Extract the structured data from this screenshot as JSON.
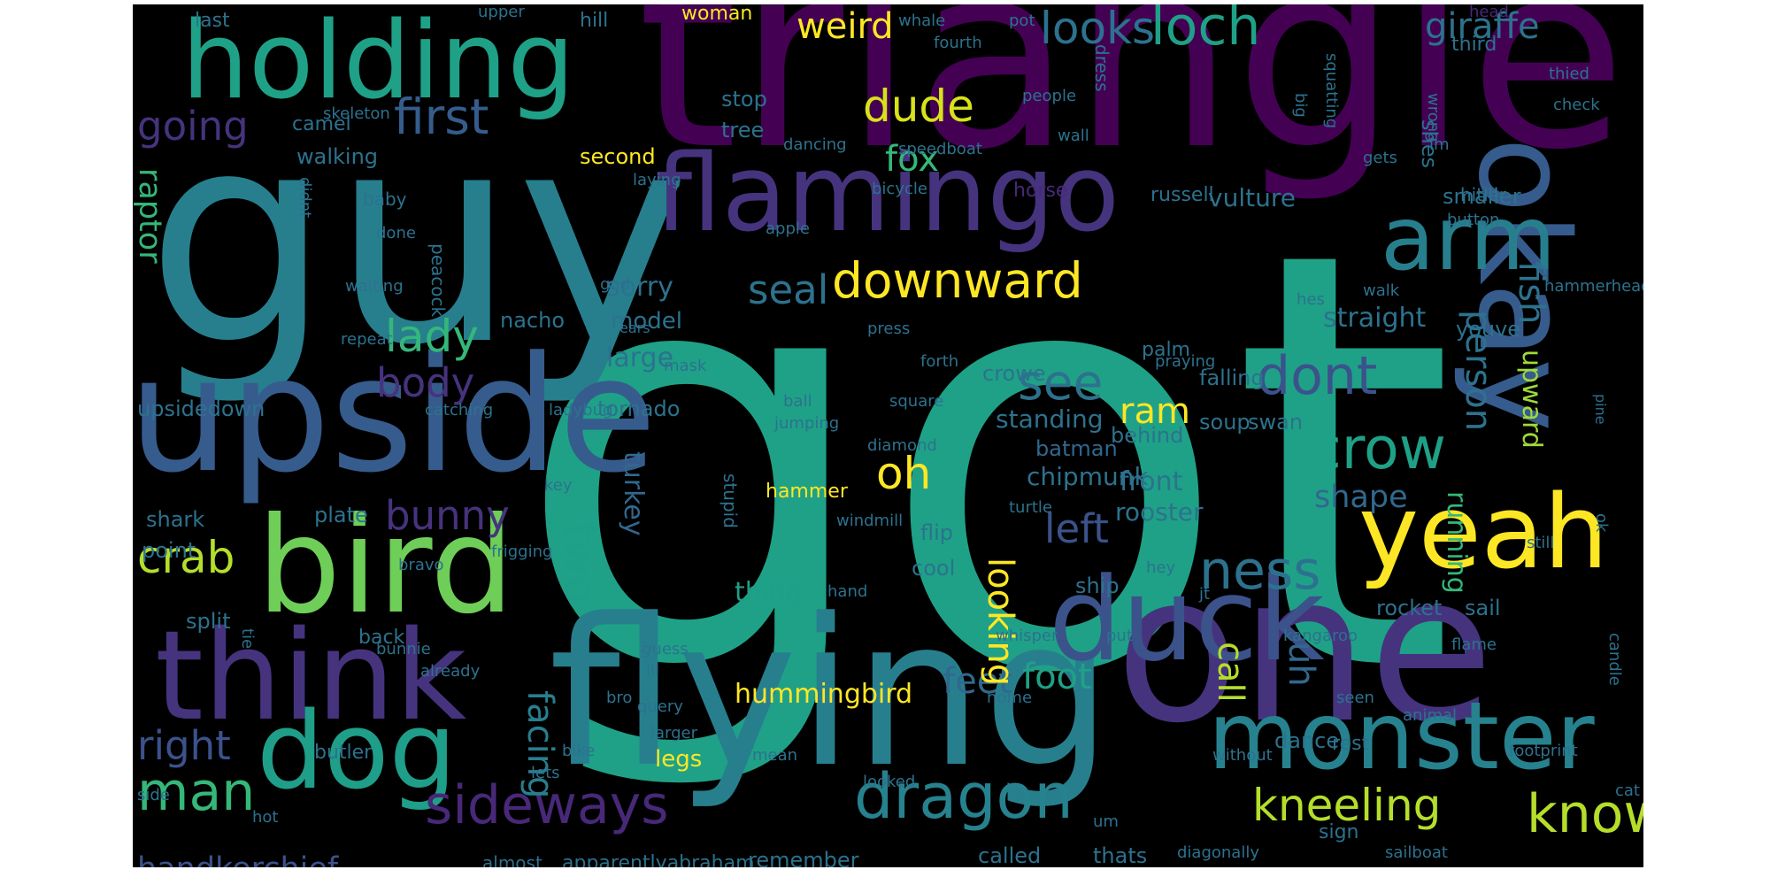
{
  "background": "#000000",
  "palette": [
    "#440154",
    "#46337e",
    "#365c8d",
    "#277f8e",
    "#1fa187",
    "#4ac16d",
    "#a0da39",
    "#fde725"
  ],
  "words": [
    {
      "text": "got",
      "color": "#1fa187"
    },
    {
      "text": "guy",
      "color": "#277f8e"
    },
    {
      "text": "triangle",
      "color": "#440154"
    },
    {
      "text": "flying",
      "color": "#277f8e"
    },
    {
      "text": "one",
      "color": "#46337e"
    },
    {
      "text": "upside",
      "color": "#365c8d"
    },
    {
      "text": "holding",
      "color": "#1fa187"
    },
    {
      "text": "flamingo",
      "color": "#46337e"
    },
    {
      "text": "bird",
      "color": "#6ece58"
    },
    {
      "text": "think",
      "color": "#46337e"
    },
    {
      "text": "okay",
      "color": "#365c8d"
    },
    {
      "text": "yeah",
      "color": "#fde725"
    },
    {
      "text": "duck",
      "color": "#3b528b"
    },
    {
      "text": "dog",
      "color": "#1f9e89"
    },
    {
      "text": "monster",
      "color": "#26828e"
    },
    {
      "text": "arm",
      "color": "#277f8e"
    },
    {
      "text": "dragon",
      "color": "#26828e"
    },
    {
      "text": "sideways",
      "color": "#482878"
    },
    {
      "text": "man",
      "color": "#35b779"
    },
    {
      "text": "ness",
      "color": "#2c728e"
    },
    {
      "text": "crow",
      "color": "#1fa187"
    },
    {
      "text": "downward",
      "color": "#fde725"
    },
    {
      "text": "dont",
      "color": "#3b528b"
    },
    {
      "text": "know",
      "color": "#b5de2b"
    },
    {
      "text": "kneeling",
      "color": "#b5de2b"
    },
    {
      "text": "looks",
      "color": "#2c728e"
    },
    {
      "text": "loch",
      "color": "#1fa187"
    },
    {
      "text": "first",
      "color": "#365c8d"
    },
    {
      "text": "going",
      "color": "#46337e"
    },
    {
      "text": "weird",
      "color": "#fde725"
    },
    {
      "text": "giraffe",
      "color": "#2c728e"
    },
    {
      "text": "dude",
      "color": "#d8e219"
    },
    {
      "text": "fox",
      "color": "#35b779"
    },
    {
      "text": "lady",
      "color": "#35b779"
    },
    {
      "text": "body",
      "color": "#46337e"
    },
    {
      "text": "crab",
      "color": "#b5de2b"
    },
    {
      "text": "right",
      "color": "#3b528b"
    },
    {
      "text": "seal",
      "color": "#2c728e"
    },
    {
      "text": "see",
      "color": "#2c728e"
    },
    {
      "text": "ram",
      "color": "#fde725"
    },
    {
      "text": "oh",
      "color": "#fde725"
    },
    {
      "text": "two",
      "color": "#1f9e89"
    },
    {
      "text": "bunny",
      "color": "#46337e"
    },
    {
      "text": "left",
      "color": "#3b528b"
    },
    {
      "text": "shape",
      "color": "#31688e"
    },
    {
      "text": "feet",
      "color": "#31688e"
    },
    {
      "text": "foot",
      "color": "#1fa187"
    },
    {
      "text": "facing",
      "color": "#277f8e"
    },
    {
      "text": "looking",
      "color": "#fde725"
    },
    {
      "text": "call",
      "color": "#b5de2b"
    },
    {
      "text": "uh",
      "color": "#31688e"
    },
    {
      "text": "person",
      "color": "#2c728e"
    },
    {
      "text": "fish",
      "color": "#2c728e"
    },
    {
      "text": "upward",
      "color": "#a0da39"
    },
    {
      "text": "running",
      "color": "#35b779"
    },
    {
      "text": "raptor",
      "color": "#35b779"
    },
    {
      "text": "turkey",
      "color": "#31688e"
    },
    {
      "text": "handkerchief",
      "color": "#3b528b"
    },
    {
      "text": "hummingbird",
      "color": "#fde725"
    },
    {
      "text": "sorry",
      "color": "#2c728e"
    },
    {
      "text": "vulture",
      "color": "#2c728e"
    },
    {
      "text": "straight",
      "color": "#2c728e"
    },
    {
      "text": "front",
      "color": "#2c728e"
    },
    {
      "text": "rooster",
      "color": "#2c728e"
    },
    {
      "text": "chipmunk",
      "color": "#2c728e"
    },
    {
      "text": "batman",
      "color": "#31688e"
    },
    {
      "text": "standing",
      "color": "#2c728e"
    },
    {
      "text": "thing",
      "color": "#1f9e89"
    },
    {
      "text": "large",
      "color": "#2c728e"
    },
    {
      "text": "model",
      "color": "#2c728e"
    },
    {
      "text": "walking",
      "color": "#2c728e"
    },
    {
      "text": "camel",
      "color": "#2c728e"
    },
    {
      "text": "stop",
      "color": "#2c728e"
    },
    {
      "text": "tree",
      "color": "#2c728e"
    },
    {
      "text": "second",
      "color": "#fde725"
    },
    {
      "text": "smaller",
      "color": "#2c728e"
    },
    {
      "text": "russell",
      "color": "#2c728e"
    },
    {
      "text": "horse",
      "color": "#482878"
    },
    {
      "text": "nacho",
      "color": "#2c728e"
    },
    {
      "text": "palm",
      "color": "#2c728e"
    },
    {
      "text": "crowe",
      "color": "#2c728e"
    },
    {
      "text": "tornado",
      "color": "#2c728e"
    },
    {
      "text": "upsidedown",
      "color": "#2c728e"
    },
    {
      "text": "shark",
      "color": "#2c728e"
    },
    {
      "text": "plate",
      "color": "#2c728e"
    },
    {
      "text": "point",
      "color": "#2c728e"
    },
    {
      "text": "split",
      "color": "#2c728e"
    },
    {
      "text": "back",
      "color": "#2c728e"
    },
    {
      "text": "butler",
      "color": "#2c728e"
    },
    {
      "text": "legs",
      "color": "#fde725"
    },
    {
      "text": "hammer",
      "color": "#fde725"
    },
    {
      "text": "flip",
      "color": "#2c728e"
    },
    {
      "text": "cool",
      "color": "#2c728e"
    },
    {
      "text": "ship",
      "color": "#2c728e"
    },
    {
      "text": "rocket",
      "color": "#2c728e"
    },
    {
      "text": "sail",
      "color": "#2c728e"
    },
    {
      "text": "youve",
      "color": "#2c728e"
    },
    {
      "text": "falling",
      "color": "#2c728e"
    },
    {
      "text": "behind",
      "color": "#2c728e"
    },
    {
      "text": "soup",
      "color": "#2c728e"
    },
    {
      "text": "swan",
      "color": "#2c728e"
    },
    {
      "text": "dance",
      "color": "#2c728e"
    },
    {
      "text": "rest",
      "color": "#2c728e"
    },
    {
      "text": "called",
      "color": "#2c728e"
    },
    {
      "text": "thats",
      "color": "#2c728e"
    },
    {
      "text": "remember",
      "color": "#2c728e"
    },
    {
      "text": "apparentlyabraham",
      "color": "#2c728e"
    },
    {
      "text": "almost",
      "color": "#2c728e"
    },
    {
      "text": "sign",
      "color": "#2c728e"
    },
    {
      "text": "shes",
      "color": "#2c728e"
    },
    {
      "text": "third",
      "color": "#2c728e"
    },
    {
      "text": "last",
      "color": "#2c728e"
    },
    {
      "text": "hill",
      "color": "#2c728e"
    },
    {
      "text": "woman",
      "color": "#fde725"
    },
    {
      "text": "upper",
      "color": "#2c728e"
    },
    {
      "text": "whale",
      "color": "#2c728e"
    },
    {
      "text": "pot",
      "color": "#2c728e"
    },
    {
      "text": "fourth",
      "color": "#2c728e"
    },
    {
      "text": "head",
      "color": "#482878"
    },
    {
      "text": "thied",
      "color": "#2c728e"
    },
    {
      "text": "check",
      "color": "#2c728e"
    },
    {
      "text": "getting",
      "color": "#2c728e"
    },
    {
      "text": "skeleton",
      "color": "#2c728e"
    },
    {
      "text": "dancing",
      "color": "#2c728e"
    },
    {
      "text": "speedboat",
      "color": "#2c728e"
    },
    {
      "text": "wall",
      "color": "#2c728e"
    },
    {
      "text": "dress",
      "color": "#2c728e"
    },
    {
      "text": "people",
      "color": "#2c728e"
    },
    {
      "text": "big",
      "color": "#2c728e"
    },
    {
      "text": "squatting",
      "color": "#2c728e"
    },
    {
      "text": "wrong",
      "color": "#2c728e"
    },
    {
      "text": "im",
      "color": "#2c728e"
    },
    {
      "text": "gets",
      "color": "#2c728e"
    },
    {
      "text": "laying",
      "color": "#2c728e"
    },
    {
      "text": "didnt",
      "color": "#2c728e"
    },
    {
      "text": "bicycle",
      "color": "#2c728e"
    },
    {
      "text": "baby",
      "color": "#2c728e"
    },
    {
      "text": "done",
      "color": "#2c728e"
    },
    {
      "text": "apple",
      "color": "#2c728e"
    },
    {
      "text": "hitler",
      "color": "#2c728e"
    },
    {
      "text": "button",
      "color": "#2c728e"
    },
    {
      "text": "walk",
      "color": "#2c728e"
    },
    {
      "text": "peacock",
      "color": "#2c728e"
    },
    {
      "text": "waiting",
      "color": "#2c728e"
    },
    {
      "text": "god",
      "color": "#2c728e"
    },
    {
      "text": "hammerhead",
      "color": "#2c728e"
    },
    {
      "text": "hes",
      "color": "#2c728e"
    },
    {
      "text": "ears",
      "color": "#2c728e"
    },
    {
      "text": "press",
      "color": "#2c728e"
    },
    {
      "text": "repeat",
      "color": "#2c728e"
    },
    {
      "text": "mask",
      "color": "#2c728e"
    },
    {
      "text": "forth",
      "color": "#2c728e"
    },
    {
      "text": "praying",
      "color": "#2c728e"
    },
    {
      "text": "catching",
      "color": "#2c728e"
    },
    {
      "text": "ladybug",
      "color": "#2c728e"
    },
    {
      "text": "ball",
      "color": "#2c728e"
    },
    {
      "text": "jumping",
      "color": "#2c728e"
    },
    {
      "text": "square",
      "color": "#2c728e"
    },
    {
      "text": "diamond",
      "color": "#2c728e"
    },
    {
      "text": "pine",
      "color": "#2c728e"
    },
    {
      "text": "key",
      "color": "#2c728e"
    },
    {
      "text": "stupid",
      "color": "#2c728e"
    },
    {
      "text": "windmill",
      "color": "#2c728e"
    },
    {
      "text": "turtle",
      "color": "#2c728e"
    },
    {
      "text": "ok",
      "color": "#2c728e"
    },
    {
      "text": "frigging",
      "color": "#2c728e"
    },
    {
      "text": "bravo",
      "color": "#2c728e"
    },
    {
      "text": "still",
      "color": "#2c728e"
    },
    {
      "text": "hey",
      "color": "#2c728e"
    },
    {
      "text": "jt",
      "color": "#2c728e"
    },
    {
      "text": "hand",
      "color": "#2c728e"
    },
    {
      "text": "tie",
      "color": "#2c728e"
    },
    {
      "text": "bunnie",
      "color": "#2c728e"
    },
    {
      "text": "already",
      "color": "#2c728e"
    },
    {
      "text": "guess",
      "color": "#2c728e"
    },
    {
      "text": "whisper",
      "color": "#2c728e"
    },
    {
      "text": "put",
      "color": "#2c728e"
    },
    {
      "text": "kangaroo",
      "color": "#2c728e"
    },
    {
      "text": "flame",
      "color": "#2c728e"
    },
    {
      "text": "candle",
      "color": "#2c728e"
    },
    {
      "text": "ill",
      "color": "#2c728e"
    },
    {
      "text": "bro",
      "color": "#2c728e"
    },
    {
      "text": "home",
      "color": "#2c728e"
    },
    {
      "text": "seen",
      "color": "#2c728e"
    },
    {
      "text": "animal",
      "color": "#2c728e"
    },
    {
      "text": "query",
      "color": "#2c728e"
    },
    {
      "text": "larger",
      "color": "#2c728e"
    },
    {
      "text": "bike",
      "color": "#2c728e"
    },
    {
      "text": "lets",
      "color": "#2c728e"
    },
    {
      "text": "mean",
      "color": "#2c728e"
    },
    {
      "text": "without",
      "color": "#2c728e"
    },
    {
      "text": "footprint",
      "color": "#2c728e"
    },
    {
      "text": "side",
      "color": "#2c728e"
    },
    {
      "text": "looked",
      "color": "#2c728e"
    },
    {
      "text": "cat",
      "color": "#2c728e"
    },
    {
      "text": "hot",
      "color": "#2c728e"
    },
    {
      "text": "um",
      "color": "#2c728e"
    },
    {
      "text": "diagonally",
      "color": "#2c728e"
    },
    {
      "text": "sailboat",
      "color": "#2c728e"
    }
  ]
}
